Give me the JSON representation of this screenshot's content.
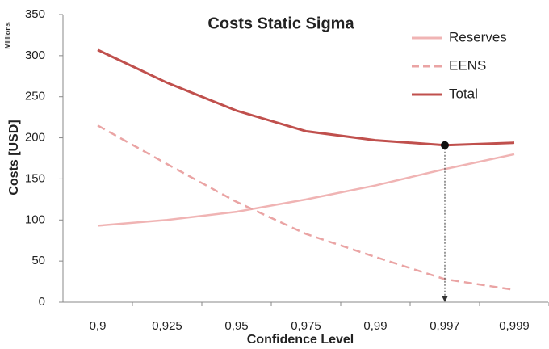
{
  "chart_data": {
    "type": "line",
    "title": "Costs Static Sigma",
    "y_label": "Costs [USD]",
    "y_unit": "Millions",
    "x_label": "Confidence Level",
    "categories": [
      "0,9",
      "0,925",
      "0,95",
      "0,975",
      "0,99",
      "0,997",
      "0,999"
    ],
    "series": [
      {
        "name": "Reserves",
        "color": "#f0b4b4",
        "dash": false,
        "values": [
          93,
          100,
          110,
          125,
          142,
          162,
          180
        ]
      },
      {
        "name": "EENS",
        "color": "#eaa4a4",
        "dash": true,
        "values": [
          215,
          168,
          122,
          83,
          55,
          28,
          15
        ]
      },
      {
        "name": "Total",
        "color": "#c0504d",
        "dash": false,
        "values": [
          307,
          267,
          233,
          208,
          197,
          191,
          194
        ]
      }
    ],
    "ylim": [
      0,
      350
    ],
    "yticks": [
      0,
      50,
      100,
      150,
      200,
      250,
      300,
      350
    ],
    "grid": false,
    "legend": "upper right"
  }
}
